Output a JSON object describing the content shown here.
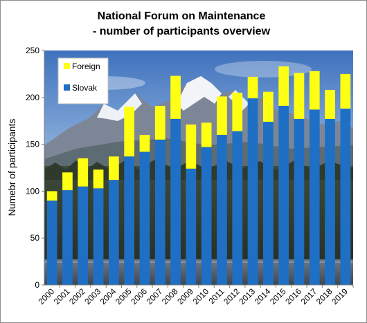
{
  "chart_data": {
    "type": "bar",
    "stacked": true,
    "title_lines": [
      "National Forum on Maintenance",
      "- number of participants overview"
    ],
    "ylabel": "Numebr of participants",
    "xlabel": "",
    "ylim": [
      0,
      250
    ],
    "yticks": [
      0,
      50,
      100,
      150,
      200,
      250
    ],
    "grid": false,
    "legend_position": "top-left",
    "categories": [
      "2000",
      "2001",
      "2002",
      "2003",
      "2004",
      "2005",
      "2006",
      "2007",
      "2008",
      "2009",
      "2010",
      "2011",
      "2012",
      "2013",
      "2014",
      "2015",
      "2016",
      "2017",
      "2018",
      "2019"
    ],
    "series": [
      {
        "name": "Slovak",
        "color": "#1F6FC5",
        "values": [
          90,
          101,
          105,
          103,
          112,
          137,
          142,
          155,
          177,
          124,
          147,
          160,
          164,
          199,
          174,
          191,
          177,
          187,
          177,
          188
        ]
      },
      {
        "name": "Foreign",
        "color": "#FFFF14",
        "values": [
          10,
          19,
          30,
          20,
          25,
          53,
          18,
          36,
          46,
          47,
          26,
          41,
          41,
          23,
          32,
          42,
          49,
          41,
          31,
          37
        ]
      }
    ],
    "legend_order": [
      "Foreign",
      "Slovak"
    ]
  }
}
